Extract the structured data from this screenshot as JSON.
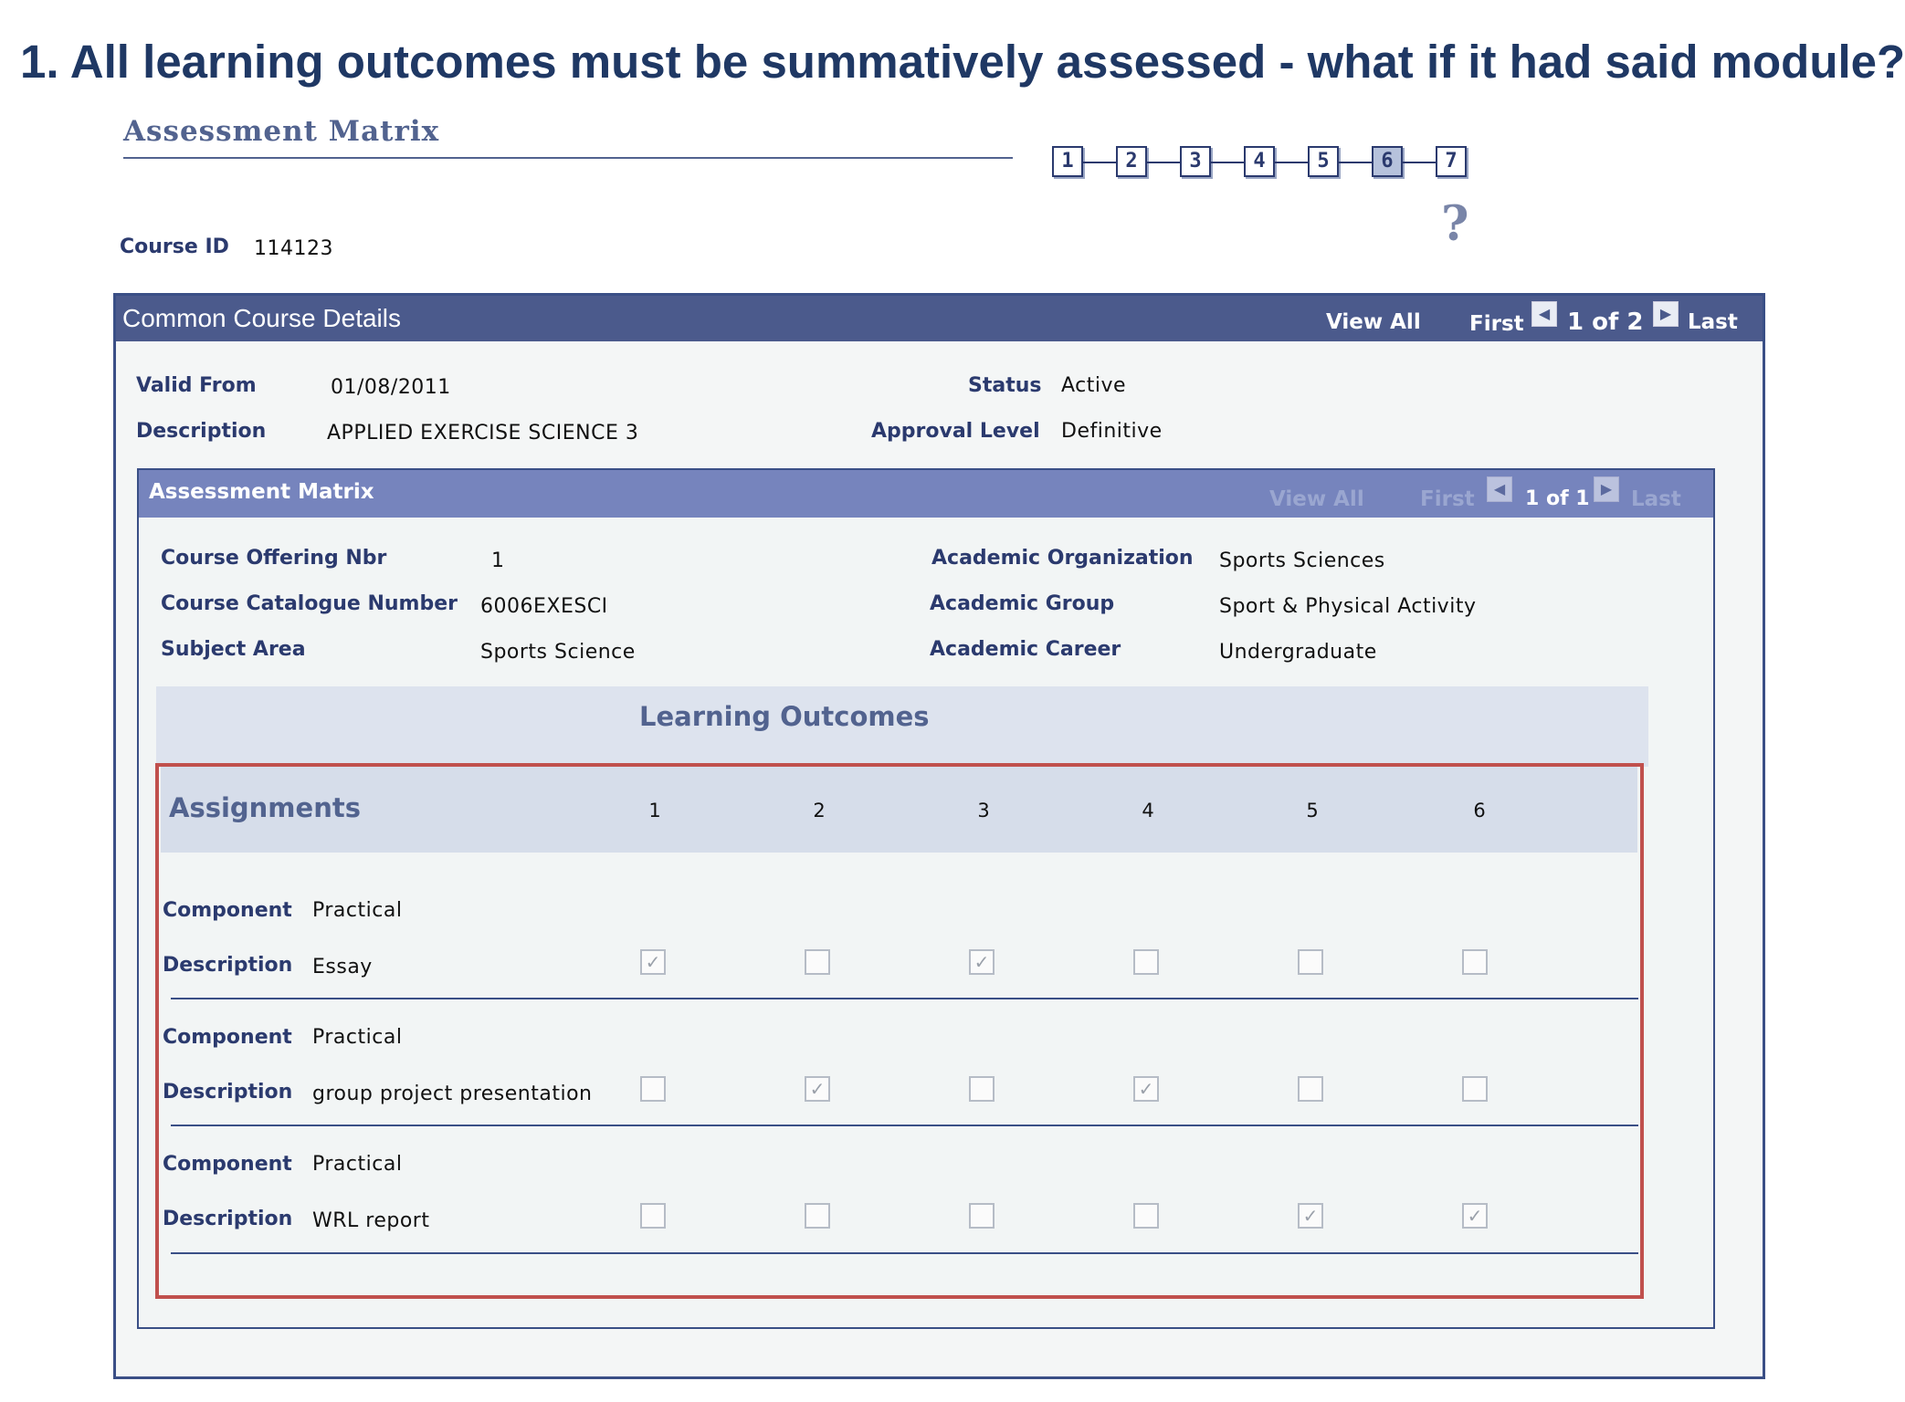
{
  "slide": {
    "title": "1. All learning outcomes must be summatively assessed - what if it had said module?"
  },
  "page": {
    "heading": "Assessment Matrix",
    "steps": [
      "1",
      "2",
      "3",
      "4",
      "5",
      "6",
      "7"
    ],
    "active_step": "6",
    "help_icon": "?"
  },
  "course": {
    "id_label": "Course ID",
    "id_value": "114123"
  },
  "common_details": {
    "title": "Common Course Details",
    "view_all": "View All",
    "first": "First",
    "counter": "1 of 2",
    "last": "Last",
    "valid_from_label": "Valid From",
    "valid_from_value": "01/08/2011",
    "description_label": "Description",
    "description_value": "APPLIED EXERCISE SCIENCE 3",
    "status_label": "Status",
    "status_value": "Active",
    "approval_label": "Approval Level",
    "approval_value": "Definitive"
  },
  "matrix": {
    "title": "Assessment Matrix",
    "view_all": "View All",
    "first": "First",
    "counter": "1 of 1",
    "last": "Last",
    "offering_label": "Course Offering Nbr",
    "offering_value": "1",
    "catalogue_label": "Course Catalogue Number",
    "catalogue_value": "6006EXESCI",
    "subject_label": "Subject Area",
    "subject_value": "Sports Science",
    "org_label": "Academic Organization",
    "org_value": "Sports Sciences",
    "group_label": "Academic Group",
    "group_value": "Sport & Physical Activity",
    "career_label": "Academic Career",
    "career_value": "Undergraduate",
    "learning_outcomes_title": "Learning Outcomes",
    "assignments_title": "Assignments",
    "outcome_columns": [
      "1",
      "2",
      "3",
      "4",
      "5",
      "6"
    ],
    "component_label": "Component",
    "description_label": "Description",
    "assignments": [
      {
        "component": "Practical",
        "description": "Essay",
        "checks": [
          true,
          false,
          true,
          false,
          false,
          false
        ]
      },
      {
        "component": "Practical",
        "description": "group project presentation",
        "checks": [
          false,
          true,
          false,
          true,
          false,
          false
        ]
      },
      {
        "component": "Practical",
        "description": "WRL report",
        "checks": [
          false,
          false,
          false,
          false,
          true,
          true
        ]
      }
    ]
  }
}
